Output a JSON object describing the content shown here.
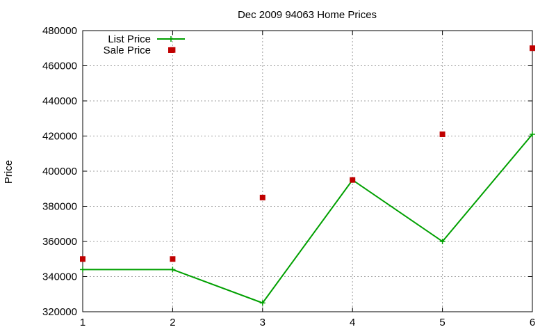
{
  "chart_data": {
    "type": "line",
    "title": "Dec 2009 94063 Home Prices",
    "xlabel": "",
    "ylabel": "Price",
    "x": [
      1,
      2,
      3,
      4,
      5,
      6
    ],
    "xlim": [
      1,
      6
    ],
    "ylim": [
      320000,
      480000
    ],
    "x_ticks": [
      "1",
      "2",
      "3",
      "4",
      "5",
      "6"
    ],
    "y_ticks": [
      "320000",
      "340000",
      "360000",
      "380000",
      "400000",
      "420000",
      "440000",
      "460000",
      "480000"
    ],
    "grid": true,
    "legend_position": "top-left",
    "series": [
      {
        "name": "List Price",
        "style": "line-with-plus-markers",
        "color": "#00a000",
        "values": [
          344000,
          344000,
          325000,
          395000,
          360000,
          421000
        ]
      },
      {
        "name": "Sale Price",
        "style": "square-markers",
        "color": "#c00000",
        "values": [
          350000,
          469000,
          385000,
          395000,
          421000,
          470000
        ],
        "extra_points": [
          [
            2,
            350000
          ]
        ]
      }
    ]
  }
}
